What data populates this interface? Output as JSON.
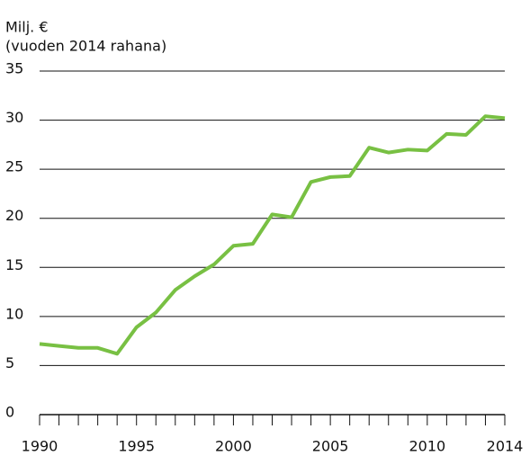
{
  "chart_data": {
    "type": "line",
    "ylabel": [
      "Milj. €",
      "(vuoden 2014 rahana)"
    ],
    "x": [
      1990,
      1991,
      1992,
      1993,
      1994,
      1995,
      1996,
      1997,
      1998,
      1999,
      2000,
      2001,
      2002,
      2003,
      2004,
      2005,
      2006,
      2007,
      2008,
      2009,
      2010,
      2011,
      2012,
      2013,
      2014
    ],
    "series": [
      {
        "color": "#78c043",
        "values": [
          7.2,
          7.0,
          6.8,
          6.8,
          6.2,
          8.9,
          10.4,
          12.7,
          14.1,
          15.3,
          17.2,
          17.4,
          20.4,
          20.1,
          23.7,
          24.2,
          24.3,
          27.2,
          26.7,
          27.0,
          26.9,
          28.6,
          28.5,
          30.4,
          30.2
        ]
      }
    ],
    "xlim": [
      1990,
      2014
    ],
    "xticks": [
      1990,
      1995,
      2000,
      2005,
      2010,
      2014
    ],
    "ylim": [
      0,
      35
    ],
    "yticks": [
      0,
      5,
      10,
      15,
      20,
      25,
      30,
      35
    ],
    "grid": true
  }
}
